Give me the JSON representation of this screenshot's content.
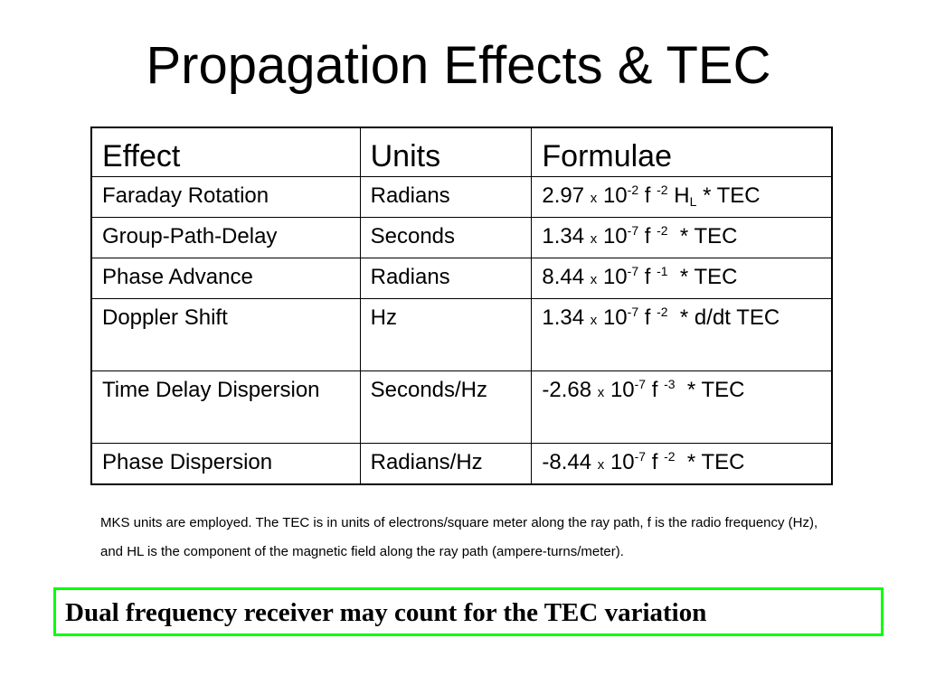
{
  "slide": {
    "title": "Propagation Effects & TEC",
    "note": "MKS units are employed. The TEC is in units of electrons/square meter along the ray path, f is the radio frequency (Hz), and HL is the component of the magnetic field along the ray path (ampere-turns/meter).",
    "callout": "Dual frequency receiver may count for the TEC variation"
  },
  "table": {
    "headers": [
      "Effect",
      "Units",
      "Formulae"
    ],
    "rows": [
      {
        "effect": "Faraday Rotation",
        "units": "Radians",
        "formula": {
          "coef": "2.97",
          "x": "x",
          "base": "10",
          "exp": "-2",
          "f": "f",
          "fexp": "-2",
          "tail": "* TEC",
          "h": "H",
          "hsub": "L"
        }
      },
      {
        "effect": "Group-Path-Delay",
        "units": "Seconds",
        "formula": {
          "coef": "1.34",
          "x": "x",
          "base": "10",
          "exp": "-7",
          "f": "f",
          "fexp": "-2",
          "tail": "* TEC"
        }
      },
      {
        "effect": "Phase Advance",
        "units": "Radians",
        "formula": {
          "coef": "8.44",
          "x": "x",
          "base": "10",
          "exp": "-7",
          "f": "f",
          "fexp": "-1",
          "tail": "* TEC"
        }
      },
      {
        "effect": "Doppler Shift",
        "units": "Hz",
        "formula": {
          "coef": "1.34",
          "x": "x",
          "base": "10",
          "exp": "-7",
          "f": "f",
          "fexp": "-2",
          "tail": "* d/dt TEC"
        }
      },
      {
        "effect": "Time Delay Dispersion",
        "units": "Seconds/Hz",
        "formula": {
          "coef": "-2.68",
          "x": "x",
          "base": "10",
          "exp": "-7",
          "f": "f",
          "fexp": "-3",
          "tail": "* TEC"
        }
      },
      {
        "effect": "Phase Dispersion",
        "units": "Radians/Hz",
        "formula": {
          "coef": "-8.44",
          "x": "x",
          "base": "10",
          "exp": "-7",
          "f": "f",
          "fexp": "-2",
          "tail": "* TEC"
        }
      }
    ]
  }
}
